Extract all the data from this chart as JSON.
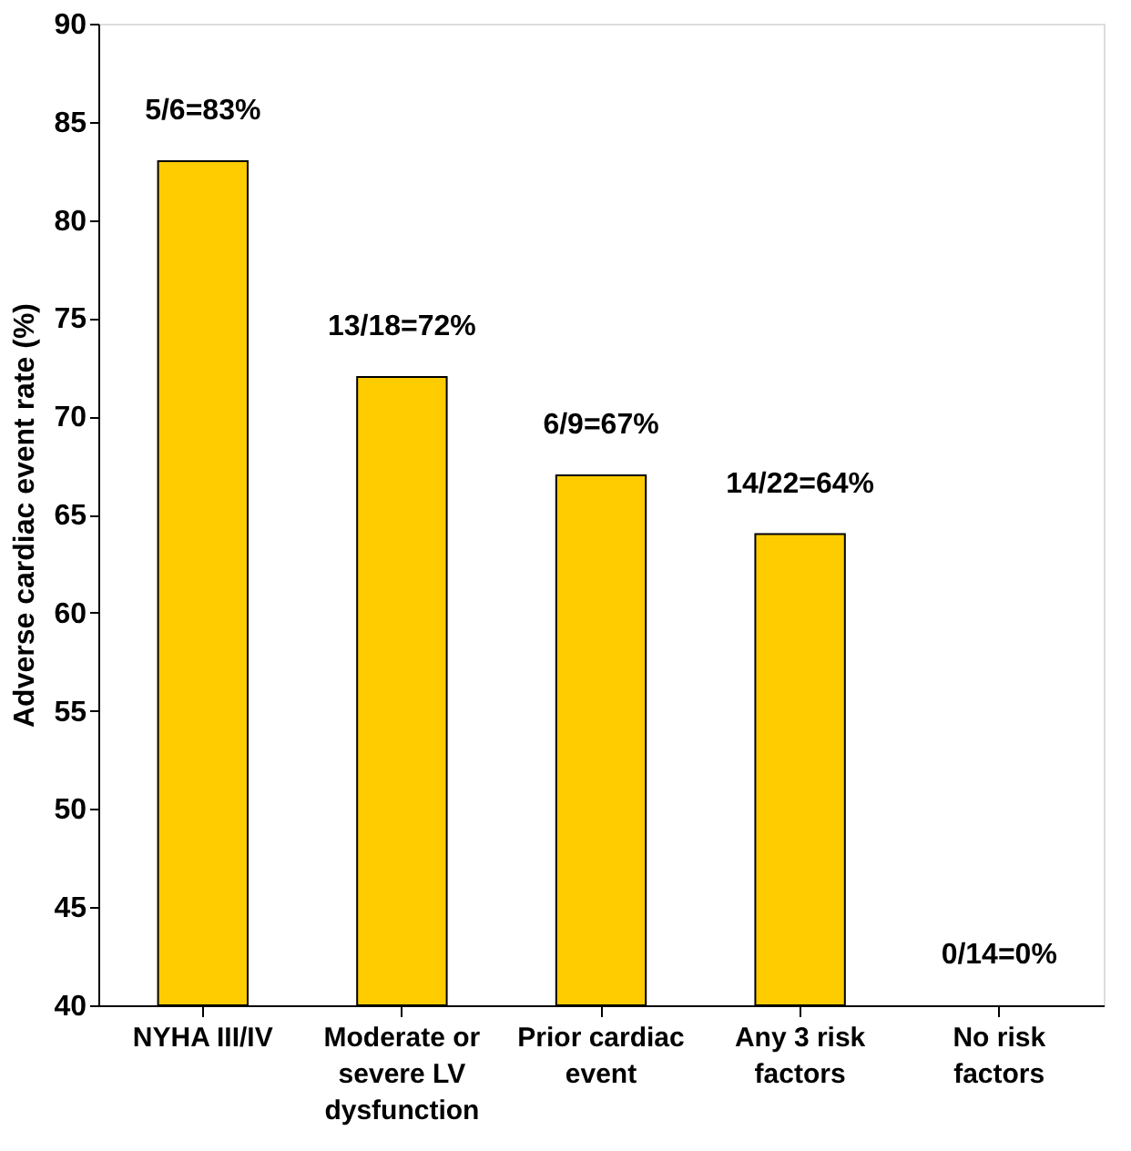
{
  "chart_data": {
    "type": "bar",
    "ylabel": "Adverse cardiac event rate (%)",
    "categories": [
      "NYHA III/IV",
      "Moderate or\nsevere LV\ndysfunction",
      "Prior cardiac\nevent",
      "Any 3 risk\nfactors",
      "No risk\nfactors"
    ],
    "values": [
      83,
      72,
      67,
      64,
      null
    ],
    "value_labels": [
      "5/6=83%",
      "13/18=72%",
      "6/9=67%",
      "14/22=64%",
      "0/14=0%"
    ],
    "color": "#ffcc00",
    "ylim": [
      40,
      90
    ],
    "yticks": [
      40,
      45,
      50,
      55,
      60,
      65,
      70,
      75,
      80,
      85,
      90
    ],
    "grid": false
  }
}
